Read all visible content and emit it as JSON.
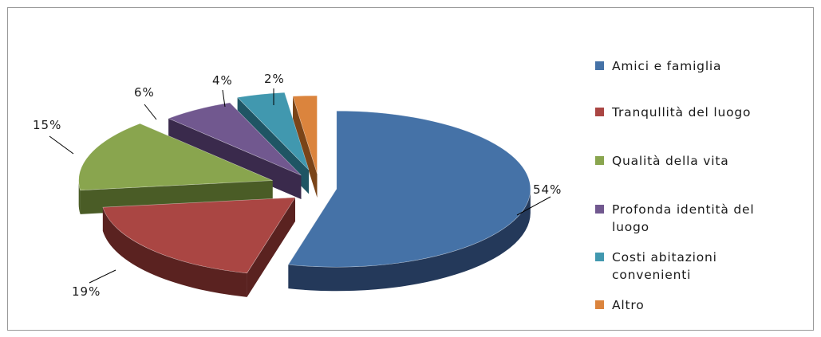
{
  "chart_data": {
    "type": "pie",
    "style": "3d-exploded",
    "legend_position": "right",
    "categories": [
      "Amici e famiglia",
      "Tranqullità del luogo",
      "Qualità della vita",
      "Profonda identità del luogo",
      "Costi abitazioni convenienti",
      "Altro"
    ],
    "values": [
      54,
      19,
      15,
      6,
      4,
      2
    ],
    "labels": [
      "54%",
      "19%",
      "15%",
      "6%",
      "4%",
      "2%"
    ],
    "legend_lines": [
      [
        "Amici e famiglia"
      ],
      [
        "Tranqullità del luogo"
      ],
      [
        "Qualità della vita"
      ],
      [
        "Profonda identità del",
        "luogo"
      ],
      [
        "Costi abitazioni",
        "convenienti"
      ],
      [
        "Altro"
      ]
    ],
    "colors": [
      "#4572A7",
      "#AA4643",
      "#89A54E",
      "#71588F",
      "#4198AF",
      "#DB843D"
    ],
    "side_colors": [
      "#24395A",
      "#5A2220",
      "#4A5C26",
      "#3A2A4C",
      "#1F5564",
      "#7A4418"
    ]
  }
}
